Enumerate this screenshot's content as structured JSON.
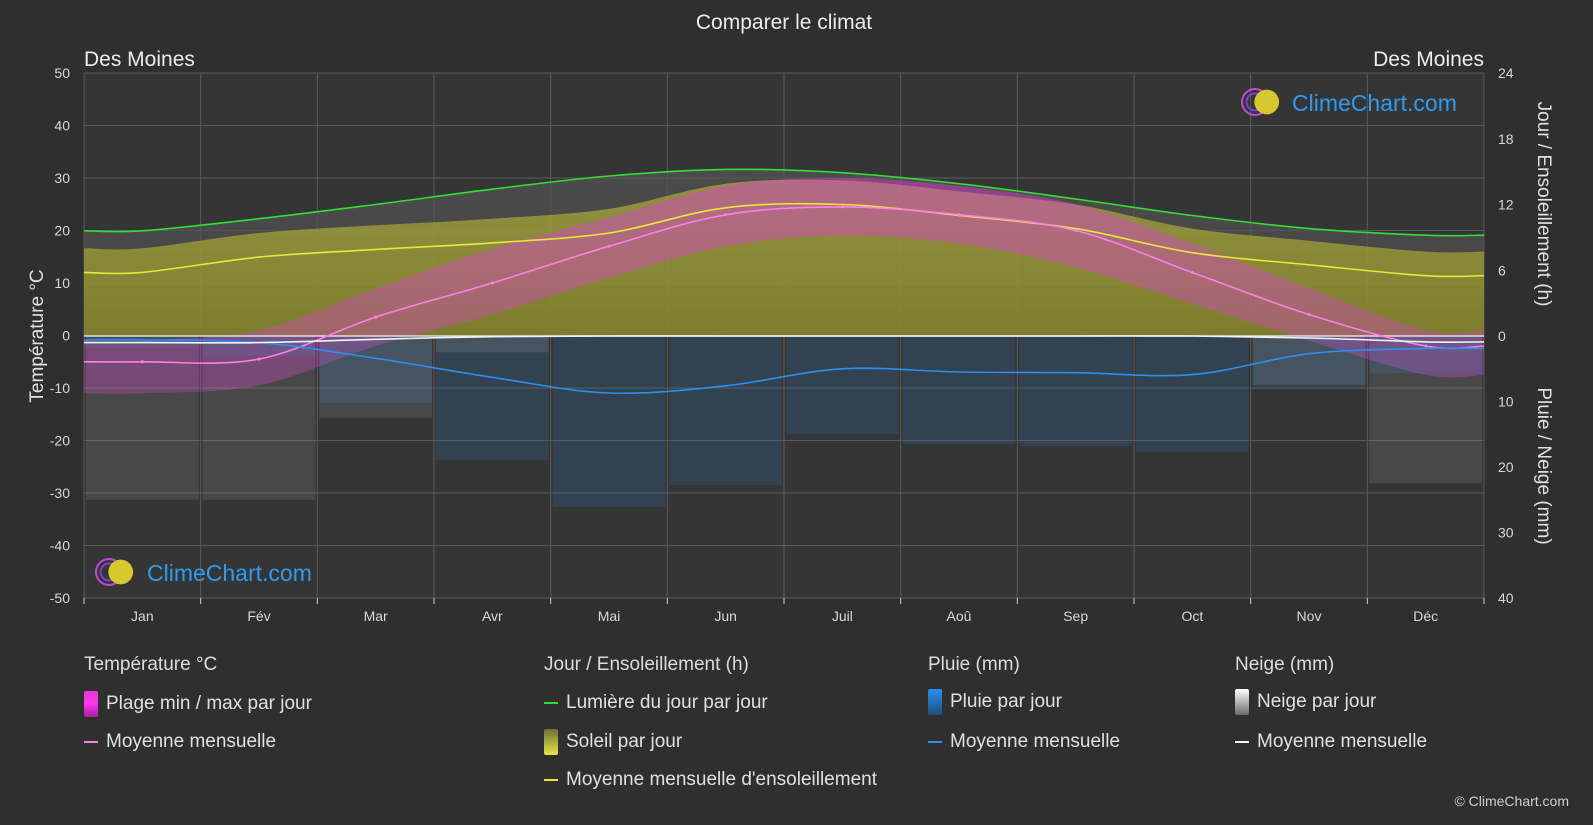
{
  "title": "Comparer le climat",
  "city_left": "Des Moines",
  "city_right": "Des Moines",
  "colors": {
    "background": "#2f2f2f",
    "temp_range": "#e13ad8",
    "temp_mean": "#ff7fe6",
    "daylight": "#33dd33",
    "sunshine_fill": "#9f9f2a",
    "sunshine_mean": "#e8e83a",
    "rain": "#2a7fd0",
    "rain_mean": "#2b8ff0",
    "snow": "#bdbdbd",
    "snow_mean": "#f2f2f2",
    "brand_blue": "#2d9cf0"
  },
  "watermark": "ClimeChart.com",
  "copyright": "© ClimeChart.com",
  "legend": {
    "temp": {
      "heading": "Température °C",
      "range": "Plage min / max par jour",
      "mean": "Moyenne mensuelle"
    },
    "sun": {
      "heading": "Jour / Ensoleillement (h)",
      "daylight": "Lumière du jour par jour",
      "sunshine": "Soleil par jour",
      "mean": "Moyenne mensuelle d'ensoleillement"
    },
    "rain": {
      "heading": "Pluie (mm)",
      "daily": "Pluie par jour",
      "mean": "Moyenne mensuelle"
    },
    "snow": {
      "heading": "Neige (mm)",
      "daily": "Neige par jour",
      "mean": "Moyenne mensuelle"
    }
  },
  "chart_data": {
    "type": "line",
    "title": "Comparer le climat",
    "months": [
      "Jan",
      "Fév",
      "Mar",
      "Avr",
      "Mai",
      "Jun",
      "Juil",
      "Aoû",
      "Sep",
      "Oct",
      "Nov",
      "Déc"
    ],
    "left_axis": {
      "label": "Température °C",
      "min": -50,
      "max": 50,
      "ticks": [
        50,
        40,
        30,
        20,
        10,
        0,
        -10,
        -20,
        -30,
        -40,
        -50
      ]
    },
    "right_axis_top": {
      "label": "Jour / Ensoleillement (h)",
      "min": 0,
      "max": 24,
      "ticks": [
        24,
        18,
        12,
        6,
        0
      ]
    },
    "right_axis_bottom": {
      "label": "Pluie / Neige (mm)",
      "min": 0,
      "max": 40,
      "ticks": [
        0,
        10,
        20,
        30,
        40
      ]
    },
    "grid": true,
    "series": [
      {
        "name": "Moyenne mensuelle",
        "group": "temperature",
        "unit": "°C",
        "values": [
          -5,
          -4.5,
          3.5,
          10,
          17,
          23,
          24.5,
          23,
          20,
          12,
          4,
          -2
        ]
      },
      {
        "name": "Plage min / max par jour",
        "group": "temperature",
        "unit": "°C",
        "max": [
          -1,
          1,
          9,
          16.5,
          22.5,
          28.5,
          30,
          28.5,
          25,
          17.5,
          9,
          1
        ],
        "min": [
          -11,
          -9.5,
          -2,
          4,
          11,
          17,
          19,
          17.5,
          13,
          6,
          -1,
          -7.5
        ]
      },
      {
        "name": "Lumière du jour par jour",
        "group": "sun",
        "unit": "h",
        "values": [
          9.6,
          10.7,
          12.0,
          13.4,
          14.6,
          15.2,
          14.9,
          13.9,
          12.5,
          11.0,
          9.8,
          9.2
        ]
      },
      {
        "name": "Moyenne mensuelle d'ensoleillement",
        "group": "sun",
        "unit": "h",
        "values": [
          5.8,
          7.2,
          7.9,
          8.5,
          9.4,
          11.7,
          12.0,
          11.0,
          9.8,
          7.6,
          6.5,
          5.5
        ]
      },
      {
        "name": "Pluie par jour (moyenne mensuelle)",
        "group": "rain",
        "unit": "mm",
        "values": [
          0.6,
          1.0,
          3.4,
          6.3,
          8.7,
          7.6,
          5.0,
          5.5,
          5.6,
          5.9,
          2.7,
          1.9
        ]
      },
      {
        "name": "Neige par jour (moyenne mensuelle)",
        "group": "snow",
        "unit": "mm",
        "values": [
          1.0,
          1.0,
          0.5,
          0.1,
          0,
          0,
          0,
          0,
          0,
          0,
          0.3,
          0.9
        ]
      }
    ]
  }
}
